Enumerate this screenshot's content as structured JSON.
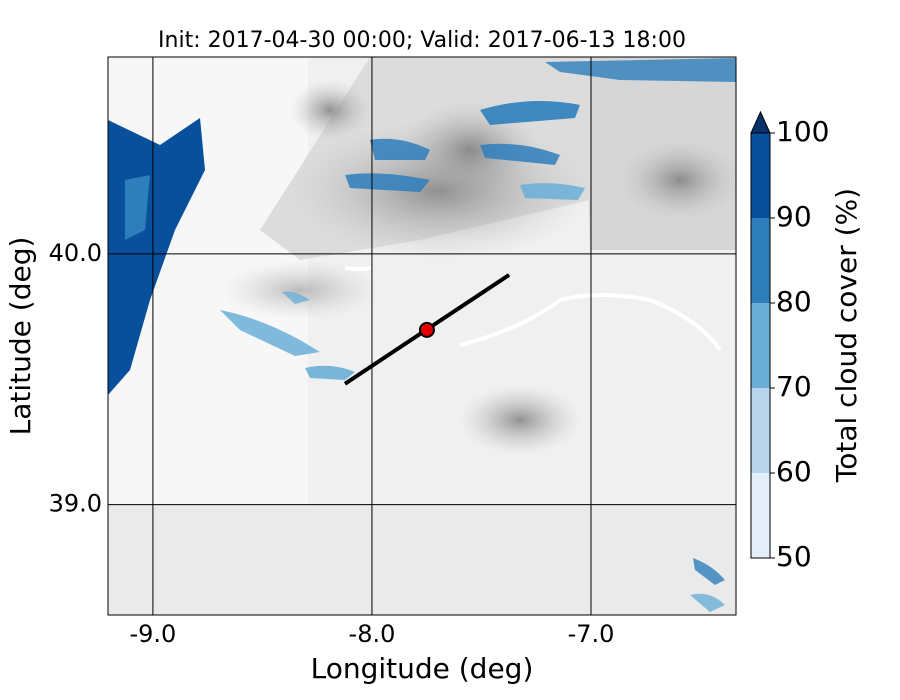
{
  "chart_data": {
    "type": "contour_map",
    "title": "Init: 2017-04-30 00:00; Valid: 2017-06-13 18:00",
    "x_label": "Longitude (deg)",
    "y_label": "Latitude (deg)",
    "xlim": [
      -9.205,
      -6.338
    ],
    "ylim": [
      38.56,
      40.785
    ],
    "xticks": [
      {
        "value": -9,
        "label": "-9.0"
      },
      {
        "value": -8,
        "label": "-8.0"
      },
      {
        "value": -7,
        "label": "-7.0"
      }
    ],
    "yticks": [
      {
        "value": 39,
        "label": "39.0"
      },
      {
        "value": 40,
        "label": "40.0"
      }
    ],
    "grid": true,
    "transect": {
      "x": [
        -8.123,
        -7.374
      ],
      "y": [
        39.482,
        39.916
      ],
      "color": "#000000"
    },
    "point": {
      "x": -7.749,
      "y": 39.697,
      "color": "#e00000"
    },
    "colorbar": {
      "label": "Total cloud cover (%)",
      "ticks": [
        50,
        60,
        70,
        80,
        90,
        100
      ],
      "colors": [
        "#e3eef8",
        "#b7d4ea",
        "#6aaed6",
        "#2e7ebc",
        "#08509b"
      ],
      "extend_color": "#08306b"
    }
  }
}
